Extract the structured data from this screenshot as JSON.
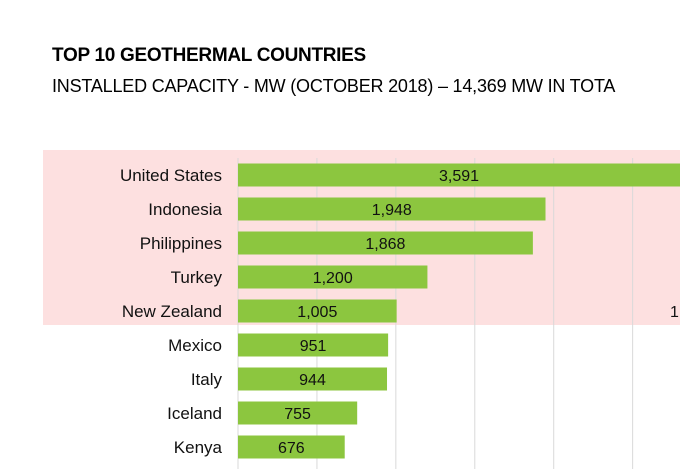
{
  "title": "TOP 10 GEOTHERMAL COUNTRIES",
  "subtitle": "INSTALLED CAPACITY - MW (OCTOBER 2018) – 14,369 MW IN TOTA",
  "colors": {
    "bar": "#8cc63f",
    "highlight_band": "#fde0e0",
    "grid": "#d9d9d9",
    "text": "#111111"
  },
  "side_label": "1",
  "chart_data": {
    "type": "bar",
    "orientation": "horizontal",
    "title": "TOP 10 GEOTHERMAL COUNTRIES",
    "subtitle": "INSTALLED CAPACITY - MW (OCTOBER 2018) – 14,369 MW IN TOTA",
    "categories": [
      "United States",
      "Indonesia",
      "Philippines",
      "Turkey",
      "New Zealand",
      "Mexico",
      "Italy",
      "Iceland",
      "Kenya"
    ],
    "values": [
      3591,
      1948,
      1868,
      1200,
      1005,
      951,
      944,
      755,
      676
    ],
    "value_labels": [
      "3,591",
      "1,948",
      "1,868",
      "1,200",
      "1,005",
      "951",
      "944",
      "755",
      "676"
    ],
    "highlighted_categories": [
      "United States",
      "Indonesia",
      "Philippines",
      "Turkey",
      "New Zealand"
    ],
    "xlim": [
      0,
      2800
    ],
    "grid": true,
    "gridline_values": [
      0,
      500,
      1000,
      1500,
      2000,
      2500
    ]
  }
}
